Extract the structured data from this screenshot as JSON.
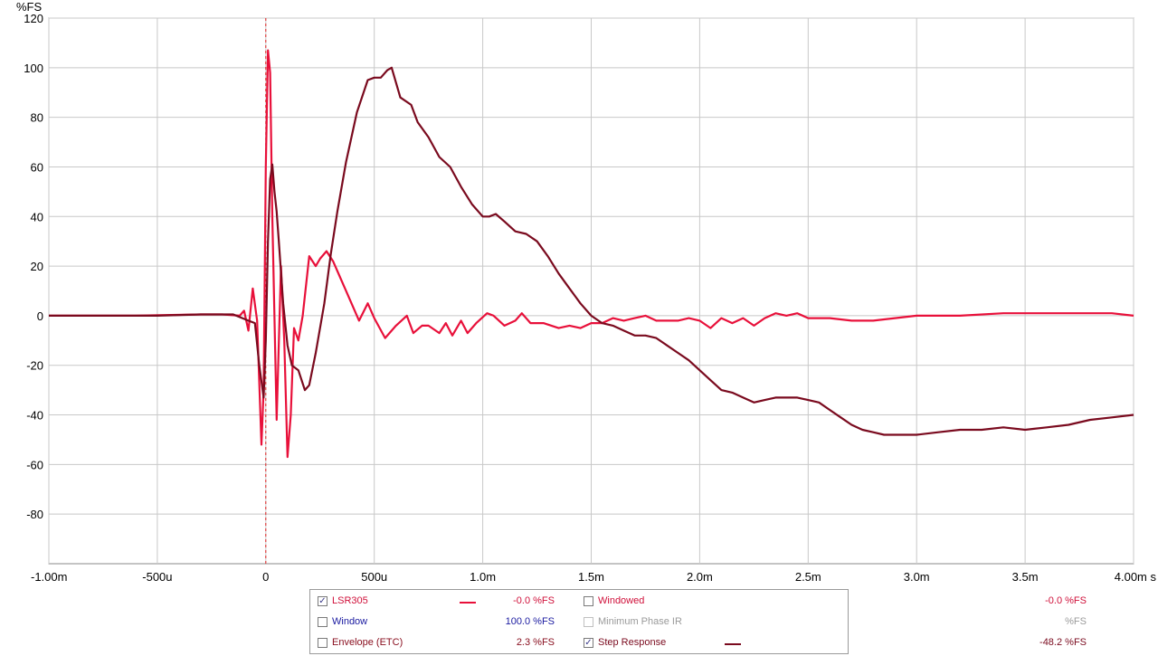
{
  "chart_data": {
    "type": "line",
    "ylabel": "%FS",
    "xlabel": "s",
    "ylim": [
      -100,
      120
    ],
    "xlim": [
      -1.0,
      4.0
    ],
    "yticks": [
      120,
      100,
      80,
      60,
      40,
      20,
      0,
      -20,
      -40,
      -60,
      -80
    ],
    "xticks": [
      {
        "value": -1.0,
        "label": "-1.00m"
      },
      {
        "value": -0.5,
        "label": "-500u"
      },
      {
        "value": 0.0,
        "label": "0"
      },
      {
        "value": 0.5,
        "label": "500u"
      },
      {
        "value": 1.0,
        "label": "1.0m"
      },
      {
        "value": 1.5,
        "label": "1.5m"
      },
      {
        "value": 2.0,
        "label": "2.0m"
      },
      {
        "value": 2.5,
        "label": "2.5m"
      },
      {
        "value": 3.0,
        "label": "3.0m"
      },
      {
        "value": 3.5,
        "label": "3.5m"
      },
      {
        "value": 4.0,
        "label": "4.00m s"
      }
    ],
    "grid": true,
    "marker_x": 0.0,
    "series": [
      {
        "name": "LSR305",
        "color": "#e8103a",
        "points": [
          [
            -1.0,
            0
          ],
          [
            -0.6,
            0
          ],
          [
            -0.3,
            0.5
          ],
          [
            -0.2,
            0.5
          ],
          [
            -0.12,
            0
          ],
          [
            -0.1,
            2
          ],
          [
            -0.08,
            -6
          ],
          [
            -0.06,
            11
          ],
          [
            -0.04,
            -2
          ],
          [
            -0.02,
            -52
          ],
          [
            -0.01,
            -30
          ],
          [
            0.0,
            60
          ],
          [
            0.01,
            107
          ],
          [
            0.02,
            98
          ],
          [
            0.03,
            40
          ],
          [
            0.05,
            -42
          ],
          [
            0.07,
            20
          ],
          [
            0.085,
            -10
          ],
          [
            0.1,
            -57
          ],
          [
            0.115,
            -40
          ],
          [
            0.13,
            -5
          ],
          [
            0.15,
            -10
          ],
          [
            0.17,
            0
          ],
          [
            0.2,
            24
          ],
          [
            0.23,
            20
          ],
          [
            0.25,
            23
          ],
          [
            0.28,
            26
          ],
          [
            0.31,
            22
          ],
          [
            0.35,
            14
          ],
          [
            0.4,
            4
          ],
          [
            0.43,
            -2
          ],
          [
            0.47,
            5
          ],
          [
            0.5,
            -1
          ],
          [
            0.55,
            -9
          ],
          [
            0.6,
            -4
          ],
          [
            0.65,
            0
          ],
          [
            0.68,
            -7
          ],
          [
            0.72,
            -4
          ],
          [
            0.75,
            -4
          ],
          [
            0.8,
            -7
          ],
          [
            0.83,
            -3
          ],
          [
            0.86,
            -8
          ],
          [
            0.9,
            -2
          ],
          [
            0.93,
            -7
          ],
          [
            0.97,
            -3
          ],
          [
            1.02,
            1
          ],
          [
            1.05,
            0
          ],
          [
            1.1,
            -4
          ],
          [
            1.15,
            -2
          ],
          [
            1.18,
            1
          ],
          [
            1.22,
            -3
          ],
          [
            1.28,
            -3
          ],
          [
            1.35,
            -5
          ],
          [
            1.4,
            -4
          ],
          [
            1.45,
            -5
          ],
          [
            1.5,
            -3
          ],
          [
            1.55,
            -3
          ],
          [
            1.6,
            -1
          ],
          [
            1.65,
            -2
          ],
          [
            1.7,
            -1
          ],
          [
            1.75,
            0
          ],
          [
            1.8,
            -2
          ],
          [
            1.9,
            -2
          ],
          [
            1.95,
            -1
          ],
          [
            2.0,
            -2
          ],
          [
            2.05,
            -5
          ],
          [
            2.1,
            -1
          ],
          [
            2.15,
            -3
          ],
          [
            2.2,
            -1
          ],
          [
            2.25,
            -4
          ],
          [
            2.3,
            -1
          ],
          [
            2.35,
            1
          ],
          [
            2.4,
            0
          ],
          [
            2.45,
            1
          ],
          [
            2.5,
            -1
          ],
          [
            2.6,
            -1
          ],
          [
            2.7,
            -2
          ],
          [
            2.8,
            -2
          ],
          [
            2.9,
            -1
          ],
          [
            3.0,
            0
          ],
          [
            3.2,
            0
          ],
          [
            3.4,
            1
          ],
          [
            3.5,
            1
          ],
          [
            3.6,
            1
          ],
          [
            3.7,
            1
          ],
          [
            3.8,
            1
          ],
          [
            3.9,
            1
          ],
          [
            4.0,
            0
          ]
        ]
      },
      {
        "name": "Step Response",
        "color": "#7a0a1e",
        "points": [
          [
            -1.0,
            0
          ],
          [
            -0.5,
            0
          ],
          [
            -0.3,
            0.5
          ],
          [
            -0.15,
            0.5
          ],
          [
            -0.08,
            -2
          ],
          [
            -0.05,
            -3
          ],
          [
            -0.03,
            -20
          ],
          [
            -0.01,
            -33
          ],
          [
            0.0,
            -10
          ],
          [
            0.01,
            30
          ],
          [
            0.02,
            55
          ],
          [
            0.03,
            61
          ],
          [
            0.04,
            50
          ],
          [
            0.05,
            42
          ],
          [
            0.06,
            30
          ],
          [
            0.08,
            5
          ],
          [
            0.1,
            -12
          ],
          [
            0.12,
            -20
          ],
          [
            0.15,
            -22
          ],
          [
            0.18,
            -30
          ],
          [
            0.2,
            -28
          ],
          [
            0.23,
            -15
          ],
          [
            0.27,
            5
          ],
          [
            0.3,
            25
          ],
          [
            0.33,
            42
          ],
          [
            0.37,
            62
          ],
          [
            0.42,
            82
          ],
          [
            0.47,
            95
          ],
          [
            0.5,
            96
          ],
          [
            0.53,
            96
          ],
          [
            0.56,
            99
          ],
          [
            0.58,
            100
          ],
          [
            0.62,
            88
          ],
          [
            0.67,
            85
          ],
          [
            0.7,
            78
          ],
          [
            0.75,
            72
          ],
          [
            0.8,
            64
          ],
          [
            0.85,
            60
          ],
          [
            0.9,
            52
          ],
          [
            0.95,
            45
          ],
          [
            1.0,
            40
          ],
          [
            1.03,
            40
          ],
          [
            1.06,
            41
          ],
          [
            1.1,
            38
          ],
          [
            1.15,
            34
          ],
          [
            1.2,
            33
          ],
          [
            1.25,
            30
          ],
          [
            1.3,
            24
          ],
          [
            1.35,
            17
          ],
          [
            1.4,
            11
          ],
          [
            1.45,
            5
          ],
          [
            1.5,
            0
          ],
          [
            1.55,
            -3
          ],
          [
            1.6,
            -4
          ],
          [
            1.65,
            -6
          ],
          [
            1.7,
            -8
          ],
          [
            1.75,
            -8
          ],
          [
            1.8,
            -9
          ],
          [
            1.85,
            -12
          ],
          [
            1.9,
            -15
          ],
          [
            1.95,
            -18
          ],
          [
            2.0,
            -22
          ],
          [
            2.05,
            -26
          ],
          [
            2.1,
            -30
          ],
          [
            2.15,
            -31
          ],
          [
            2.2,
            -33
          ],
          [
            2.25,
            -35
          ],
          [
            2.3,
            -34
          ],
          [
            2.35,
            -33
          ],
          [
            2.4,
            -33
          ],
          [
            2.45,
            -33
          ],
          [
            2.5,
            -34
          ],
          [
            2.55,
            -35
          ],
          [
            2.6,
            -38
          ],
          [
            2.65,
            -41
          ],
          [
            2.7,
            -44
          ],
          [
            2.75,
            -46
          ],
          [
            2.8,
            -47
          ],
          [
            2.85,
            -48
          ],
          [
            2.9,
            -48
          ],
          [
            3.0,
            -48
          ],
          [
            3.1,
            -47
          ],
          [
            3.2,
            -46
          ],
          [
            3.3,
            -46
          ],
          [
            3.4,
            -45
          ],
          [
            3.5,
            -46
          ],
          [
            3.6,
            -45
          ],
          [
            3.7,
            -44
          ],
          [
            3.8,
            -42
          ],
          [
            3.9,
            -41
          ],
          [
            4.0,
            -40
          ]
        ]
      }
    ]
  },
  "legend": {
    "items": [
      {
        "key": "lsr305",
        "label": "LSR305",
        "checked": true,
        "enabled": true,
        "label_color": "#d0103a",
        "swatch_color": "#e8103a",
        "value": "-0.0 %FS",
        "value_color": "#d0103a"
      },
      {
        "key": "window",
        "label": "Window",
        "checked": false,
        "enabled": true,
        "label_color": "#1a1aa0",
        "swatch_color": "",
        "value": "100.0 %FS",
        "value_color": "#1a1aa0"
      },
      {
        "key": "envelope",
        "label": "Envelope (ETC)",
        "checked": false,
        "enabled": true,
        "label_color": "#8a1020",
        "swatch_color": "",
        "value": "2.3 %FS",
        "value_color": "#8a1020"
      },
      {
        "key": "windowed",
        "label": "Windowed",
        "checked": false,
        "enabled": true,
        "label_color": "#d0103a",
        "swatch_color": "",
        "value": "-0.0 %FS",
        "value_color": "#d0103a"
      },
      {
        "key": "minphase",
        "label": "Minimum Phase IR",
        "checked": false,
        "enabled": false,
        "label_color": "#9a9a9a",
        "swatch_color": "",
        "value": "%FS",
        "value_color": "#9a9a9a"
      },
      {
        "key": "step",
        "label": "Step Response",
        "checked": true,
        "enabled": true,
        "label_color": "#7a0a1e",
        "swatch_color": "#7a0a1e",
        "value": "-48.2 %FS",
        "value_color": "#7a0a1e"
      }
    ]
  }
}
